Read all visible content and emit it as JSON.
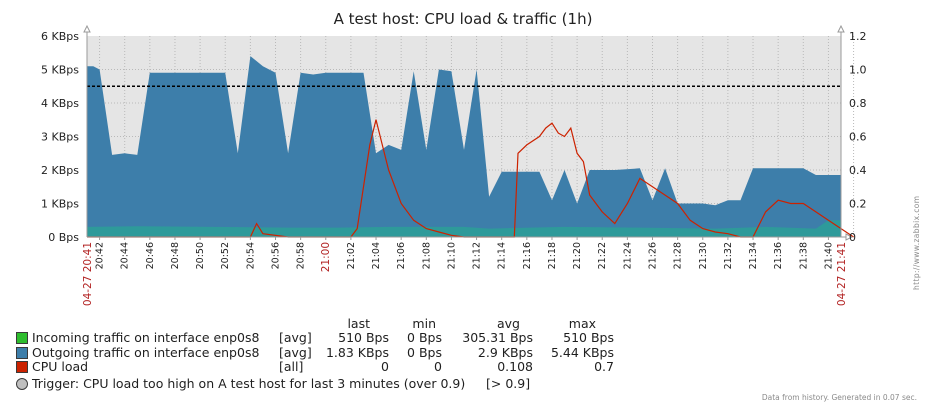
{
  "title": "A test host: CPU load & traffic (1h)",
  "colors": {
    "incoming": "#2ebd2e",
    "outgoing": "#3d7eaa",
    "incoming_fill": "#2e9a9a",
    "cpu": "#cc2200",
    "trigger_line": "#000000",
    "plot_bg": "#e5e5e5",
    "grid": "#b9b9b9",
    "axis_red_label": "#b22222"
  },
  "chart_data": {
    "type": "area",
    "title": "A test host: CPU load & traffic (1h)",
    "x_start_label": "04-27 20:41",
    "x_end_label": "04-27 21:41",
    "x_tick_labels": [
      "20:42",
      "20:44",
      "20:46",
      "20:48",
      "20:50",
      "20:52",
      "20:54",
      "20:56",
      "20:58",
      "21:00",
      "21:02",
      "21:04",
      "21:06",
      "21:08",
      "21:10",
      "21:12",
      "21:14",
      "21:16",
      "21:18",
      "21:20",
      "21:22",
      "21:24",
      "21:26",
      "21:28",
      "21:30",
      "21:32",
      "21:34",
      "21:36",
      "21:38",
      "21:40"
    ],
    "x_highlight_label": "21:00",
    "x_range": [
      "20:41",
      "21:41"
    ],
    "y_left": {
      "unit": "Bps",
      "ticks": [
        "0 Bps",
        "1 KBps",
        "2 KBps",
        "3 KBps",
        "4 KBps",
        "5 KBps",
        "6 KBps"
      ],
      "range_kbps": [
        0,
        6
      ]
    },
    "y_right": {
      "ticks": [
        "0",
        "0.2",
        "0.4",
        "0.6",
        "0.8",
        "1.0",
        "1.2"
      ],
      "range": [
        0,
        1.2
      ]
    },
    "grid": true,
    "series": [
      {
        "name": "Outgoing traffic on interface enp0s8",
        "axis": "left",
        "draw": "filled",
        "points_min_kbps": [
          [
            0,
            5.1
          ],
          [
            0.5,
            5.1
          ],
          [
            1,
            5.0
          ],
          [
            2,
            2.45
          ],
          [
            3,
            2.5
          ],
          [
            4,
            2.45
          ],
          [
            5,
            4.9
          ],
          [
            6,
            4.9
          ],
          [
            8,
            4.9
          ],
          [
            10,
            4.9
          ],
          [
            11,
            4.9
          ],
          [
            12,
            2.5
          ],
          [
            13,
            5.4
          ],
          [
            14,
            5.1
          ],
          [
            15,
            4.9
          ],
          [
            16,
            2.5
          ],
          [
            17,
            4.9
          ],
          [
            18,
            4.85
          ],
          [
            19,
            4.9
          ],
          [
            20,
            4.9
          ],
          [
            22,
            4.9
          ],
          [
            23,
            2.5
          ],
          [
            24,
            2.75
          ],
          [
            25,
            2.6
          ],
          [
            26,
            4.95
          ],
          [
            27,
            2.6
          ],
          [
            28,
            5.0
          ],
          [
            29,
            4.95
          ],
          [
            30,
            2.6
          ],
          [
            31,
            5.0
          ],
          [
            32,
            1.2
          ],
          [
            33,
            1.95
          ],
          [
            36,
            1.95
          ],
          [
            37,
            1.1
          ],
          [
            38,
            2.0
          ],
          [
            39,
            1.0
          ],
          [
            40,
            2.0
          ],
          [
            42,
            2.0
          ],
          [
            44,
            2.05
          ],
          [
            45,
            1.1
          ],
          [
            46,
            2.05
          ],
          [
            47,
            1.0
          ],
          [
            48,
            1.0
          ],
          [
            49,
            1.0
          ],
          [
            50,
            0.95
          ],
          [
            51,
            1.1
          ],
          [
            52,
            1.1
          ],
          [
            53,
            2.05
          ],
          [
            57,
            2.05
          ],
          [
            58,
            1.85
          ],
          [
            60,
            1.85
          ]
        ]
      },
      {
        "name": "Incoming traffic on interface enp0s8",
        "axis": "left",
        "draw": "filled",
        "points_min_kbps": [
          [
            0,
            0.3
          ],
          [
            4,
            0.32
          ],
          [
            10,
            0.3
          ],
          [
            16,
            0.28
          ],
          [
            20,
            0.28
          ],
          [
            24,
            0.3
          ],
          [
            30,
            0.3
          ],
          [
            32,
            0.25
          ],
          [
            38,
            0.3
          ],
          [
            44,
            0.28
          ],
          [
            50,
            0.25
          ],
          [
            54,
            0.3
          ],
          [
            58,
            0.25
          ],
          [
            59,
            0.5
          ],
          [
            60,
            0.5
          ]
        ]
      },
      {
        "name": "CPU load",
        "axis": "right",
        "draw": "line",
        "points_min_value": [
          [
            0,
            0
          ],
          [
            13,
            0
          ],
          [
            13.5,
            0.08
          ],
          [
            14,
            0.02
          ],
          [
            16,
            0
          ],
          [
            21,
            0
          ],
          [
            21.5,
            0.05
          ],
          [
            22,
            0.3
          ],
          [
            22.5,
            0.55
          ],
          [
            23,
            0.7
          ],
          [
            23.5,
            0.55
          ],
          [
            24,
            0.4
          ],
          [
            25,
            0.2
          ],
          [
            26,
            0.1
          ],
          [
            27,
            0.05
          ],
          [
            28,
            0.03
          ],
          [
            29,
            0.01
          ],
          [
            30,
            0
          ],
          [
            34,
            0
          ],
          [
            34.3,
            0.5
          ],
          [
            35,
            0.55
          ],
          [
            36,
            0.6
          ],
          [
            36.5,
            0.65
          ],
          [
            37,
            0.68
          ],
          [
            37.5,
            0.62
          ],
          [
            38,
            0.6
          ],
          [
            38.5,
            0.65
          ],
          [
            39,
            0.5
          ],
          [
            39.5,
            0.45
          ],
          [
            40,
            0.25
          ],
          [
            41,
            0.15
          ],
          [
            42,
            0.08
          ],
          [
            43,
            0.2
          ],
          [
            44,
            0.35
          ],
          [
            45,
            0.3
          ],
          [
            46,
            0.25
          ],
          [
            47,
            0.2
          ],
          [
            48,
            0.1
          ],
          [
            49,
            0.05
          ],
          [
            50,
            0.03
          ],
          [
            51,
            0.02
          ],
          [
            52,
            0
          ],
          [
            53,
            0.0
          ],
          [
            54,
            0.15
          ],
          [
            55,
            0.22
          ],
          [
            56,
            0.2
          ],
          [
            57,
            0.2
          ],
          [
            58,
            0.15
          ],
          [
            59,
            0.1
          ],
          [
            60,
            0.05
          ],
          [
            61,
            0.0
          ]
        ]
      }
    ],
    "trigger_line_value": 0.9
  },
  "legend": {
    "headers": {
      "last": "last",
      "min": "min",
      "avg": "avg",
      "max": "max"
    },
    "rows": [
      {
        "name": "Incoming traffic on interface enp0s8",
        "func": "[avg]",
        "last": "510 Bps",
        "min": "0 Bps",
        "avg": "305.31 Bps",
        "max": "510 Bps",
        "color": "#2ebd2e"
      },
      {
        "name": "Outgoing traffic on interface enp0s8",
        "func": "[avg]",
        "last": "1.83 KBps",
        "min": "0 Bps",
        "avg": "2.9 KBps",
        "max": "5.44 KBps",
        "color": "#3d7eaa"
      },
      {
        "name": "CPU load",
        "func": "[all]",
        "last": "0",
        "min": "0",
        "avg": "0.108",
        "max": "0.7",
        "color": "#cc2200"
      }
    ],
    "trigger": {
      "text": "Trigger: CPU load too high on A test host for last 3 minutes (over 0.9)",
      "cond": "[> 0.9]"
    }
  },
  "footer": "Data from history. Generated in 0.07 sec.",
  "watermark": "http://www.zabbix.com"
}
